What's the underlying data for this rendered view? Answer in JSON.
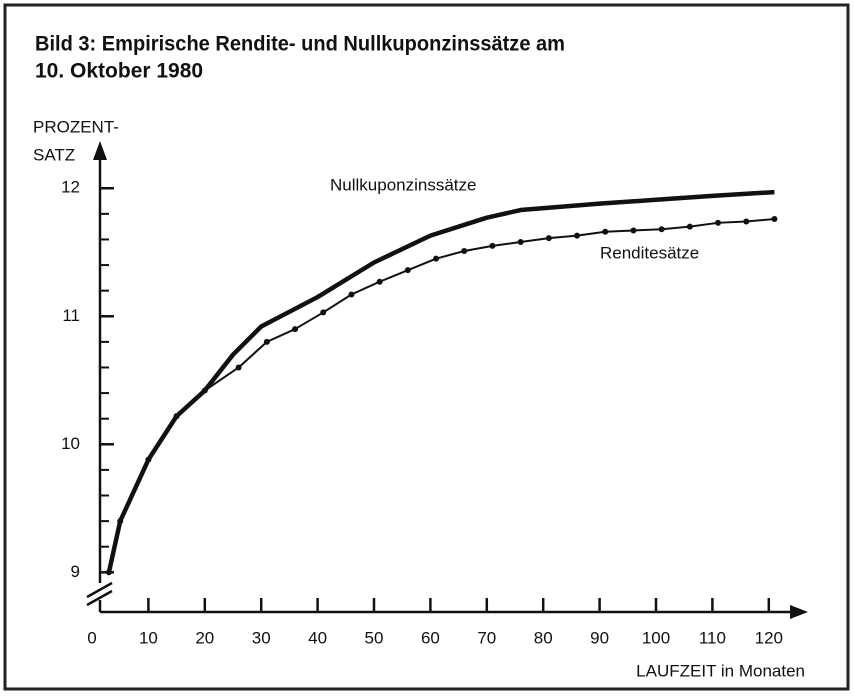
{
  "chart_data": {
    "type": "line",
    "title": [
      "Bild 3: Empirische Rendite- und Nullkuponzinssätze am",
      "10. Oktober 1980"
    ],
    "ylabel": [
      "PROZENT-",
      "SATZ"
    ],
    "xlabel": "LAUFZEIT in Monaten",
    "xlim": [
      0,
      125
    ],
    "ylim": [
      8.69,
      12.33
    ],
    "xticks": [
      0,
      10,
      20,
      30,
      40,
      50,
      60,
      70,
      80,
      90,
      100,
      110,
      120
    ],
    "yticks": [
      9,
      10,
      11,
      12
    ],
    "yminor": [
      9.2,
      9.4,
      9.6,
      9.8,
      10.2,
      10.4,
      10.6,
      10.8,
      11.2,
      11.4,
      11.6,
      11.8
    ],
    "series": [
      {
        "name": "Nullkuponzinssätze",
        "color": "#111111",
        "markers": false,
        "x": [
          3,
          5,
          10,
          15,
          20,
          25,
          30,
          40,
          50,
          60,
          70,
          76,
          90,
          100,
          110,
          121
        ],
        "values": [
          9.0,
          9.4,
          9.88,
          10.22,
          10.42,
          10.7,
          10.92,
          11.15,
          11.42,
          11.63,
          11.77,
          11.83,
          11.88,
          11.91,
          11.94,
          11.97
        ]
      },
      {
        "name": "Renditesätze",
        "color": "#111111",
        "markers": true,
        "x": [
          3,
          5,
          10,
          15,
          20,
          26,
          31,
          36,
          41,
          46,
          51,
          56,
          61,
          66,
          71,
          76,
          81,
          86,
          91,
          96,
          101,
          106,
          111,
          116,
          121
        ],
        "values": [
          9.0,
          9.4,
          9.88,
          10.22,
          10.42,
          10.6,
          10.8,
          10.9,
          11.03,
          11.17,
          11.27,
          11.36,
          11.45,
          11.51,
          11.55,
          11.58,
          11.61,
          11.63,
          11.66,
          11.67,
          11.68,
          11.7,
          11.73,
          11.74,
          11.76
        ]
      }
    ]
  }
}
